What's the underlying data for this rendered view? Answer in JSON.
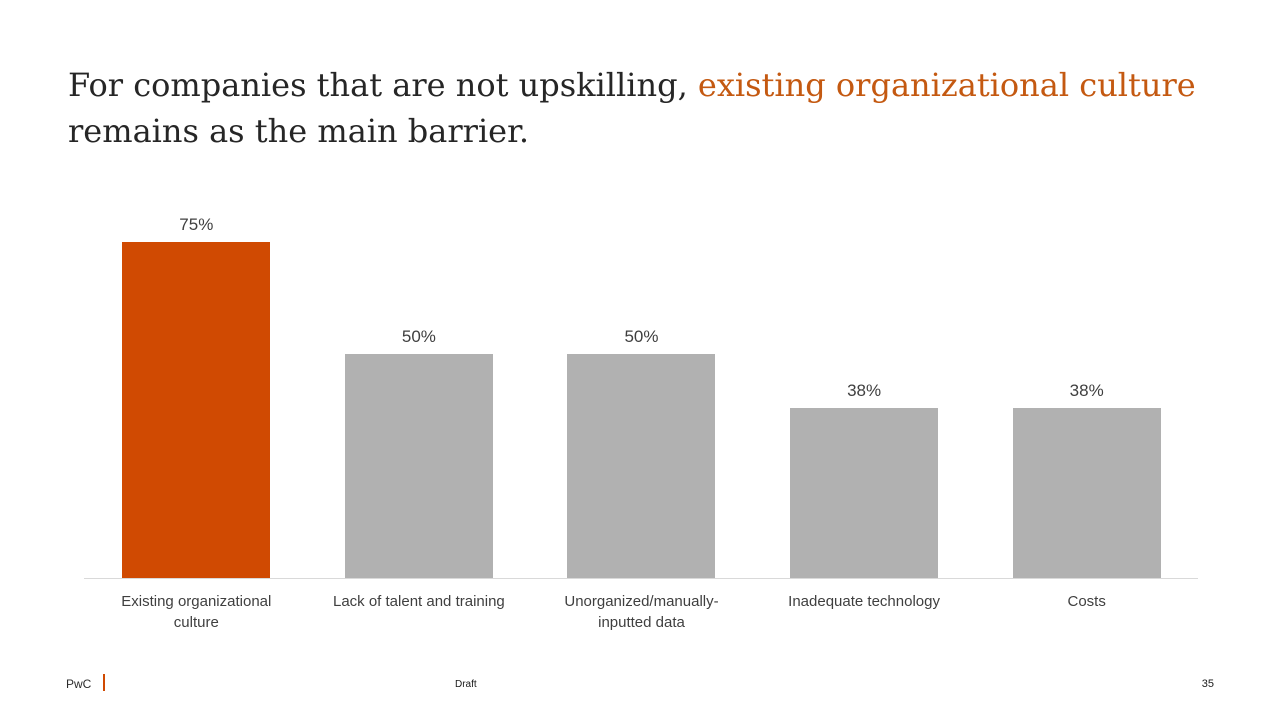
{
  "slide": {
    "title": {
      "line1_black": "For companies that are not upskilling, ",
      "line1_highlight": "existing organizational culture",
      "line2": "remains as the main barrier.",
      "highlight_color": "#C45911",
      "text_color": "#262626"
    },
    "footer": {
      "brand": "PwC",
      "status": "Draft",
      "page_number": "35",
      "separator_color": "#D04A02"
    }
  },
  "chart_data": {
    "type": "bar",
    "title": "",
    "xlabel": "",
    "ylabel": "",
    "categories": [
      "Existing organizational culture",
      "Lack of talent and training",
      "Unorganized/manually-inputted data",
      "Inadequate technology",
      "Costs"
    ],
    "values": [
      75,
      50,
      50,
      38,
      38
    ],
    "value_labels": [
      "75%",
      "50%",
      "50%",
      "38%",
      "38%"
    ],
    "unit": "%",
    "ylim": [
      0,
      100
    ],
    "grid": false,
    "legend": false,
    "data_label_position": "outside-end",
    "highlight_index": 0,
    "highlight_color": "#D04A02",
    "default_color": "#B1B1B1",
    "axis_line_color": "#D9D9D9",
    "label_color": "#3F3F3F"
  }
}
